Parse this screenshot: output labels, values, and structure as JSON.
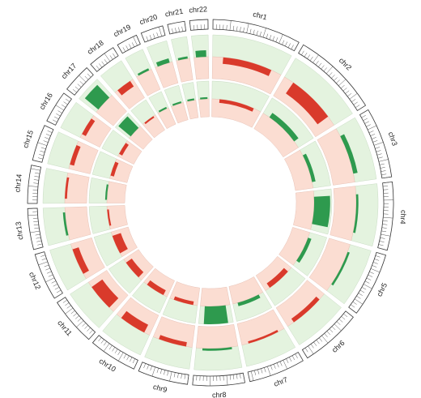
{
  "chart_data": {
    "type": "circos",
    "categories": [
      "chr1",
      "chr2",
      "chr3",
      "chr4",
      "chr5",
      "chr6",
      "chr7",
      "chr8",
      "chr9",
      "chr10",
      "chr11",
      "chr12",
      "chr13",
      "chr14",
      "chr15",
      "chr16",
      "chr17",
      "chr18",
      "chr19",
      "chr20",
      "chr21",
      "chr22"
    ],
    "lengths": [
      249,
      243,
      198,
      191,
      181,
      171,
      159,
      146,
      141,
      136,
      135,
      133,
      115,
      107,
      102,
      90,
      81,
      78,
      59,
      63,
      48,
      51
    ],
    "ylim": [
      -1,
      1
    ],
    "series": [
      {
        "color": "#2e9a4e",
        "negative_color": "#d93a2b",
        "values": [
          -0.3,
          -0.6,
          0.2,
          0.1,
          0.1,
          -0.2,
          -0.1,
          0.1,
          -0.2,
          -0.4,
          -0.6,
          -0.3,
          0.1,
          -0.1,
          -0.2,
          -0.2,
          0.8,
          -0.3,
          0.1,
          0.2,
          0.1,
          0.3
        ]
      },
      {
        "color": "#2e9a4e",
        "negative_color": "#d93a2b",
        "values": [
          -0.2,
          0.3,
          0.2,
          0.9,
          0.2,
          -0.3,
          0.2,
          1.0,
          -0.2,
          -0.3,
          -0.4,
          -0.5,
          -0.1,
          0.1,
          -0.2,
          -0.2,
          0.9,
          -0.1,
          0.1,
          0.1,
          0.1,
          0.1
        ]
      }
    ]
  }
}
